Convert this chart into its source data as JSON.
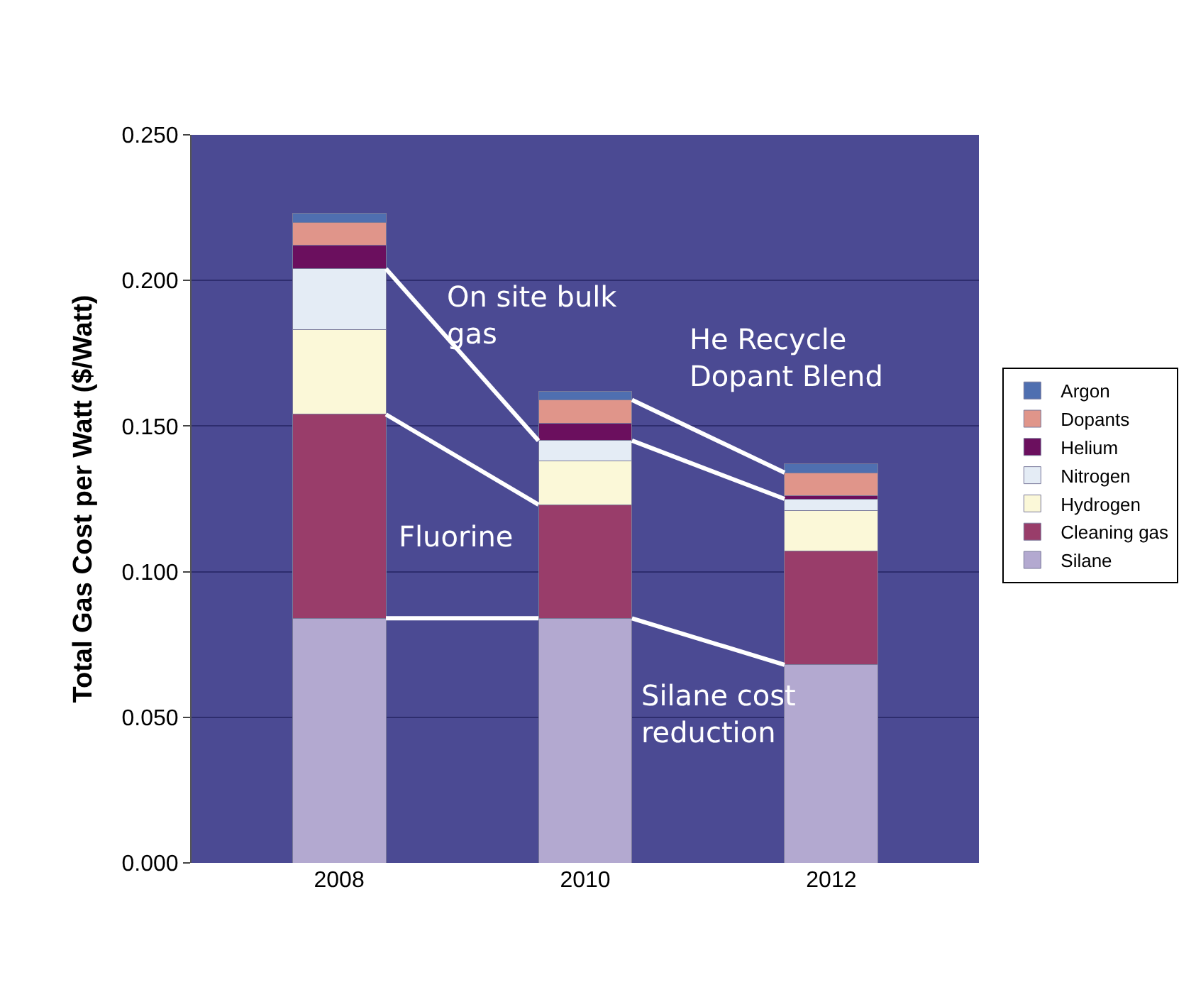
{
  "chart_data": {
    "type": "bar",
    "stacked": true,
    "ylabel": "Total Gas Cost per Watt ($/Watt)",
    "categories": [
      "2008",
      "2010",
      "2012"
    ],
    "series": [
      {
        "name": "Silane",
        "color": "#b3a9d0",
        "values": [
          0.084,
          0.084,
          0.068
        ]
      },
      {
        "name": "Cleaning gas",
        "color": "#993d6a",
        "values": [
          0.07,
          0.039,
          0.039
        ]
      },
      {
        "name": "Hydrogen",
        "color": "#fbf8d8",
        "values": [
          0.029,
          0.015,
          0.014
        ]
      },
      {
        "name": "Nitrogen",
        "color": "#e4ecf5",
        "values": [
          0.021,
          0.007,
          0.004
        ]
      },
      {
        "name": "Helium",
        "color": "#6b0f5e",
        "values": [
          0.008,
          0.006,
          0.001
        ]
      },
      {
        "name": "Dopants",
        "color": "#e0958a",
        "values": [
          0.008,
          0.008,
          0.008
        ]
      },
      {
        "name": "Argon",
        "color": "#4f6fb0",
        "values": [
          0.003,
          0.003,
          0.003
        ]
      }
    ],
    "ylim": [
      0,
      0.25
    ],
    "yticks": [
      {
        "value": 0,
        "label": "0.000"
      },
      {
        "value": 0.05,
        "label": "0.050"
      },
      {
        "value": 0.1,
        "label": "0.100"
      },
      {
        "value": 0.15,
        "label": "0.150"
      },
      {
        "value": 0.2,
        "label": "0.200"
      },
      {
        "value": 0.25,
        "label": "0.250"
      }
    ],
    "grid": "y",
    "legend": "right",
    "annotations": [
      "On site bulk gas",
      {
        "text": "He Recycle Dopant Blend",
        "x": "2012",
        "y": 0.133
      },
      {
        "text": "Fluorine",
        "x": "2010",
        "y": 0.123
      },
      {
        "text": "Silane cost reduction",
        "x": "2012",
        "y": 0.068
      }
    ]
  }
}
